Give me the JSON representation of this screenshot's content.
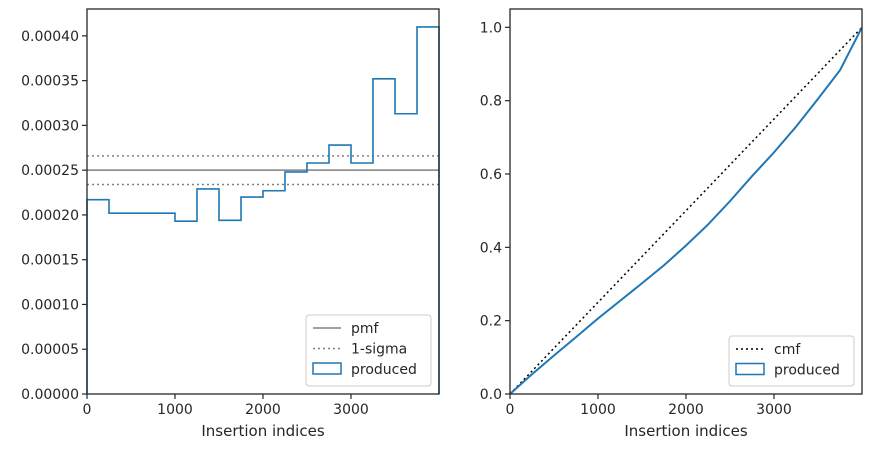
{
  "chart_data": [
    {
      "type": "step",
      "xlabel": "Insertion indices",
      "ylabel": "",
      "xlim": [
        0,
        4000
      ],
      "ylim": [
        0,
        0.00043
      ],
      "xticks": [
        0,
        1000,
        2000,
        3000
      ],
      "xtick_labels": [
        "0",
        "1000",
        "2000",
        "3000"
      ],
      "yticks": [
        0,
        5e-05,
        0.0001,
        0.00015,
        0.0002,
        0.00025,
        0.0003,
        0.00035,
        0.0004
      ],
      "ytick_labels": [
        "0.00000",
        "0.00005",
        "0.00010",
        "0.00015",
        "0.00020",
        "0.00025",
        "0.00030",
        "0.00035",
        "0.00040"
      ],
      "legend_position": "lower-right",
      "legend": [
        "pmf",
        "1-sigma",
        "produced"
      ],
      "reference_lines": [
        {
          "name": "pmf",
          "y": 0.00025,
          "style": "solid",
          "color": "#808080"
        },
        {
          "name": "1-sigma",
          "y": 0.000266,
          "style": "dotted",
          "color": "#808080"
        },
        {
          "name": "1-sigma",
          "y": 0.000234,
          "style": "dotted",
          "color": "#808080"
        }
      ],
      "series": [
        {
          "name": "produced",
          "color": "#1f77b4",
          "bin_edges": [
            0,
            250,
            500,
            750,
            1000,
            1250,
            1500,
            1750,
            2000,
            2250,
            2500,
            2750,
            3000,
            3250,
            3500,
            3750,
            4000
          ],
          "values": [
            0.000217,
            0.000202,
            0.000202,
            0.000202,
            0.000193,
            0.000229,
            0.000194,
            0.00022,
            0.000227,
            0.000248,
            0.000258,
            0.000278,
            0.000258,
            0.000352,
            0.000313,
            0.00041
          ]
        }
      ]
    },
    {
      "type": "line",
      "xlabel": "Insertion indices",
      "ylabel": "",
      "xlim": [
        0,
        4000
      ],
      "ylim": [
        0,
        1.05
      ],
      "xticks": [
        0,
        1000,
        2000,
        3000
      ],
      "xtick_labels": [
        "0",
        "1000",
        "2000",
        "3000"
      ],
      "yticks": [
        0,
        0.2,
        0.4,
        0.6,
        0.8,
        1.0
      ],
      "ytick_labels": [
        "0.0",
        "0.2",
        "0.4",
        "0.6",
        "0.8",
        "1.0"
      ],
      "legend_position": "lower-right",
      "legend": [
        "cmf",
        "produced"
      ],
      "series": [
        {
          "name": "cmf",
          "style": "dotted",
          "color": "#000000",
          "x": [
            0,
            4000
          ],
          "y": [
            0,
            1.0
          ]
        },
        {
          "name": "produced",
          "style": "solid",
          "color": "#1f77b4",
          "x": [
            0,
            250,
            500,
            750,
            1000,
            1250,
            1500,
            1750,
            2000,
            2250,
            2500,
            2750,
            3000,
            3250,
            3500,
            3750,
            4000
          ],
          "y": [
            0,
            0.054,
            0.105,
            0.155,
            0.206,
            0.254,
            0.302,
            0.351,
            0.405,
            0.462,
            0.526,
            0.594,
            0.659,
            0.729,
            0.805,
            0.883,
            1.0
          ]
        }
      ]
    }
  ]
}
